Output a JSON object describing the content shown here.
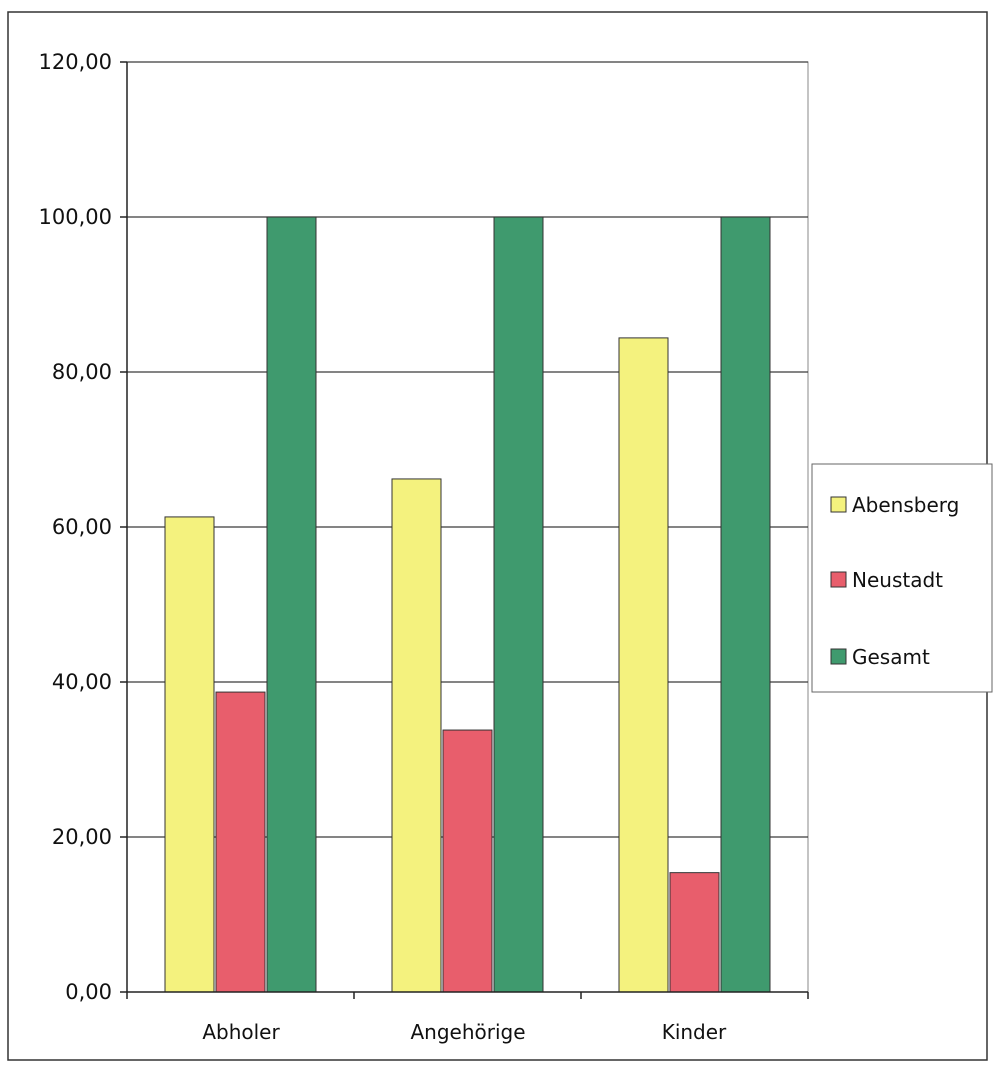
{
  "chart_data": {
    "type": "bar",
    "categories": [
      "Abholer",
      "Angehörige",
      "Kinder"
    ],
    "series": [
      {
        "name": "Abensberg",
        "color": "#f4f27e",
        "values": [
          61.3,
          66.2,
          84.4
        ]
      },
      {
        "name": "Neustadt",
        "color": "#e85e6c",
        "values": [
          38.7,
          33.8,
          15.4
        ]
      },
      {
        "name": "Gesamt",
        "color": "#3f9a6e",
        "values": [
          100.0,
          100.0,
          100.0
        ]
      }
    ],
    "y_ticks": [
      "0,00",
      "20,00",
      "40,00",
      "60,00",
      "80,00",
      "100,00",
      "120,00"
    ],
    "ylim": [
      0,
      120
    ],
    "grid": true,
    "legend_position": "right"
  }
}
